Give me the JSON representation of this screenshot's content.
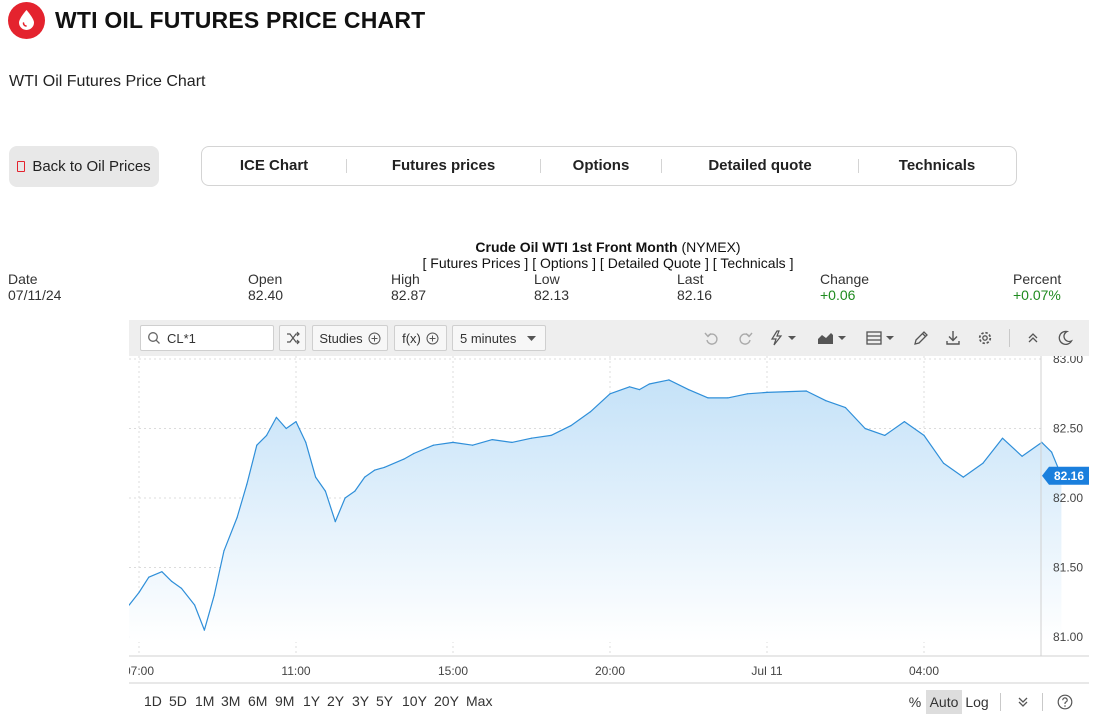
{
  "header": {
    "title": "WTI OIL FUTURES PRICE CHART",
    "subtitle": "WTI Oil Futures Price Chart"
  },
  "back_button": {
    "label": "Back to Oil Prices"
  },
  "tabs": [
    {
      "label": "ICE Chart"
    },
    {
      "label": "Futures prices"
    },
    {
      "label": "Options"
    },
    {
      "label": "Detailed quote"
    },
    {
      "label": "Technicals"
    }
  ],
  "quote": {
    "name": "Crude Oil WTI 1st Front Month",
    "exchange": "(NYMEX)",
    "links": [
      "Futures Prices",
      "Options",
      "Detailed Quote",
      "Technicals"
    ],
    "fields": [
      {
        "label": "Date",
        "value": "07/11/24",
        "color": "neutral"
      },
      {
        "label": "Open",
        "value": "82.40",
        "color": "neutral"
      },
      {
        "label": "High",
        "value": "82.87",
        "color": "neutral"
      },
      {
        "label": "Low",
        "value": "82.13",
        "color": "neutral"
      },
      {
        "label": "Last",
        "value": "82.16",
        "color": "neutral"
      },
      {
        "label": "Change",
        "value": "+0.06",
        "color": "green"
      },
      {
        "label": "Percent",
        "value": "+0.07%",
        "color": "green"
      }
    ]
  },
  "toolbar": {
    "symbol": "CL*1",
    "studies_label": "Studies",
    "fx_label": "f(x)",
    "interval_label": "5 minutes",
    "icons": [
      "compare-icon",
      "undo-icon",
      "redo-icon",
      "lightning-icon",
      "area-chart-icon",
      "layout-icon",
      "pencil-icon",
      "download-icon",
      "settings-icon",
      "collapse-icon",
      "moon-icon"
    ]
  },
  "bottom_bar": {
    "ranges": [
      "1D",
      "5D",
      "1M",
      "3M",
      "6M",
      "9M",
      "1Y",
      "2Y",
      "3Y",
      "5Y",
      "10Y",
      "20Y",
      "Max"
    ],
    "scale_options": [
      "%",
      "Auto",
      "Log"
    ],
    "active_scale": "Auto"
  },
  "colors": {
    "brand": "#e4232e",
    "line": "#2f8fd9",
    "fill_top": "#c5e2f8",
    "fill_bottom": "#ffffff",
    "last_badge": "#1a7fdd",
    "positive": "#1f8b1f"
  },
  "chart_data": {
    "type": "area",
    "title": "",
    "xlabel": "",
    "ylabel": "",
    "ylim": [
      80.89,
      83.0
    ],
    "y_ticks": [
      "81.00",
      "81.50",
      "82.00",
      "82.50",
      "83.00"
    ],
    "x_ticks": [
      "07:00",
      "11:00",
      "15:00",
      "20:00",
      "Jul 11",
      "04:00"
    ],
    "last_value": "82.16",
    "grid": true,
    "series": [
      {
        "x": [
          "07/10 06:45",
          "07/10 07:00",
          "07/10 07:15",
          "07/10 07:35",
          "07/10 07:50",
          "07/10 08:05",
          "07/10 08:25",
          "07/10 08:40",
          "07/10 08:55",
          "07/10 09:10",
          "07/10 09:30",
          "07/10 09:45",
          "07/10 10:00",
          "07/10 10:15",
          "07/10 10:30",
          "07/10 10:45",
          "07/10 11:00",
          "07/10 11:15",
          "07/10 11:30",
          "07/10 11:45",
          "07/10 12:00",
          "07/10 12:15",
          "07/10 12:30",
          "07/10 12:45",
          "07/10 13:00",
          "07/10 13:15",
          "07/10 13:45",
          "07/10 14:00",
          "07/10 14:30",
          "07/10 15:00",
          "07/10 15:30",
          "07/10 16:00",
          "07/10 16:30",
          "07/10 17:00",
          "07/10 17:30",
          "07/10 18:00",
          "07/10 18:30",
          "07/10 19:00",
          "07/10 19:30",
          "07/10 19:45",
          "07/10 20:00",
          "07/10 20:30",
          "07/10 21:00",
          "07/10 21:30",
          "07/10 22:00",
          "07/10 22:30",
          "07/10 23:00",
          "07/11 00:00",
          "07/11 00:30",
          "07/11 01:00",
          "07/11 01:30",
          "07/11 02:00",
          "07/11 02:30",
          "07/11 03:00",
          "07/11 03:30",
          "07/11 04:00",
          "07/11 04:30",
          "07/11 05:00",
          "07/11 05:30",
          "07/11 06:00",
          "07/11 06:15",
          "07/11 06:30"
        ],
        "values": [
          81.23,
          81.32,
          81.43,
          81.47,
          81.4,
          81.35,
          81.23,
          81.05,
          81.3,
          81.62,
          81.86,
          82.1,
          82.38,
          82.45,
          82.58,
          82.5,
          82.55,
          82.4,
          82.15,
          82.05,
          81.83,
          82.0,
          82.05,
          82.15,
          82.2,
          82.22,
          82.28,
          82.32,
          82.38,
          82.4,
          82.38,
          82.42,
          82.4,
          82.43,
          82.45,
          82.52,
          82.62,
          82.75,
          82.8,
          82.78,
          82.82,
          82.85,
          82.78,
          82.72,
          82.72,
          82.75,
          82.76,
          82.77,
          82.7,
          82.65,
          82.5,
          82.45,
          82.55,
          82.45,
          82.25,
          82.15,
          82.25,
          82.43,
          82.3,
          82.4,
          82.33,
          82.16
        ]
      }
    ]
  }
}
